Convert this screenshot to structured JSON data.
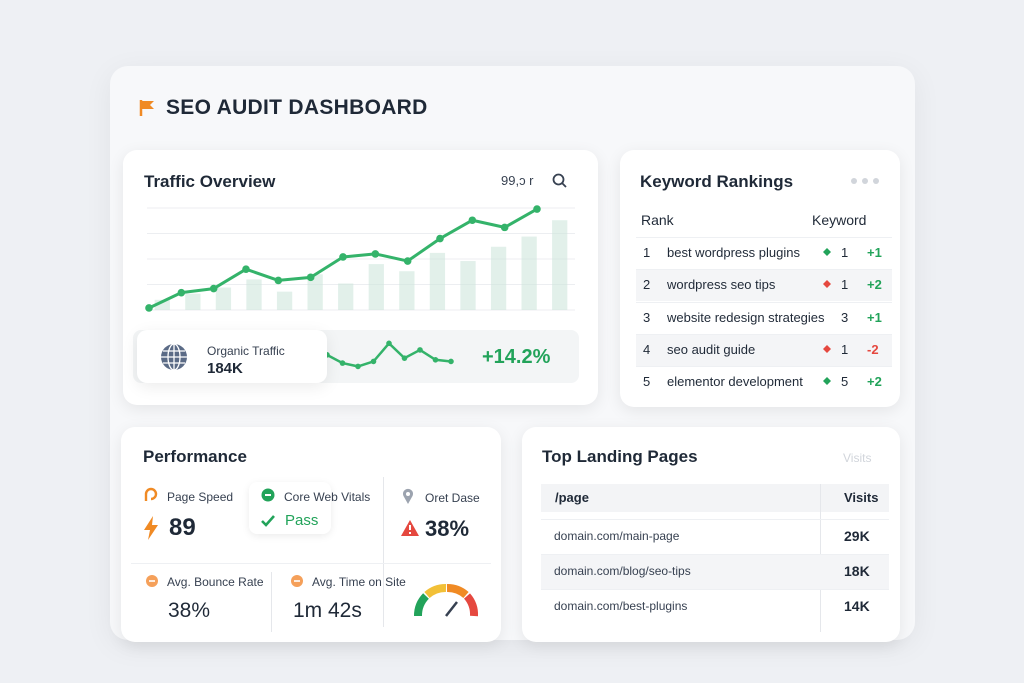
{
  "header": {
    "title": "SEO AUDIT DASHBOARD"
  },
  "traffic": {
    "title": "Traffic Overview",
    "range_label": "99,ɔ r",
    "chart": {
      "type": "line",
      "ylim": [
        0,
        100
      ],
      "line_color": "#34b36a",
      "bar_color": "#cfe6dc",
      "line_values": [
        2,
        17,
        21,
        40,
        29,
        32,
        52,
        55,
        48,
        70,
        88,
        81,
        99
      ],
      "bar_values": [
        10,
        16,
        22,
        30,
        18,
        35,
        26,
        45,
        38,
        56,
        48,
        62,
        72,
        88
      ]
    },
    "organic": {
      "label": "Organic Traffic",
      "value": "184K"
    },
    "sparkline": {
      "ylim": [
        0,
        100
      ],
      "values": [
        55,
        30,
        20,
        35,
        90,
        45,
        70,
        40,
        35
      ]
    },
    "change": "+14.2%"
  },
  "keywords": {
    "title": "Keyword Rankings",
    "headers": [
      "Rank",
      "Keyword"
    ],
    "rows": [
      {
        "rank": 1,
        "keyword": "best wordpress plugins",
        "trend": "up",
        "position": 1,
        "change": "+1"
      },
      {
        "rank": 2,
        "keyword": "wordpress seo tips",
        "trend": "down",
        "position": 1,
        "change": "+2"
      },
      {
        "rank": 3,
        "keyword": "website redesign strategies",
        "trend": "flat",
        "position": 3,
        "change": "+1"
      },
      {
        "rank": 4,
        "keyword": "seo audit guide",
        "trend": "down",
        "position": 1,
        "change": "-2"
      },
      {
        "rank": 5,
        "keyword": "elementor development",
        "trend": "up",
        "position": 5,
        "change": "+2"
      }
    ]
  },
  "performance": {
    "title": "Performance",
    "page_speed": {
      "label": "Page Speed",
      "value": "89"
    },
    "core_web_vitals": {
      "label": "Core Web Vitals",
      "value": "Pass"
    },
    "other": {
      "label": "Oret Dase",
      "value": "38%"
    },
    "bounce_rate": {
      "label": "Avg. Bounce Rate",
      "value": "38%"
    },
    "time_on_site": {
      "label": "Avg. Time on Site",
      "value": "1m 42s"
    }
  },
  "landing": {
    "title": "Top Landing Pages",
    "faded_label": "Visits",
    "headers": [
      "/page",
      "Visits"
    ],
    "rows": [
      [
        "domain.com/main-page",
        "29K"
      ],
      [
        "domain.com/blog/seo-tips",
        "18K"
      ],
      [
        "domain.com/best-plugins",
        "14K"
      ]
    ]
  }
}
